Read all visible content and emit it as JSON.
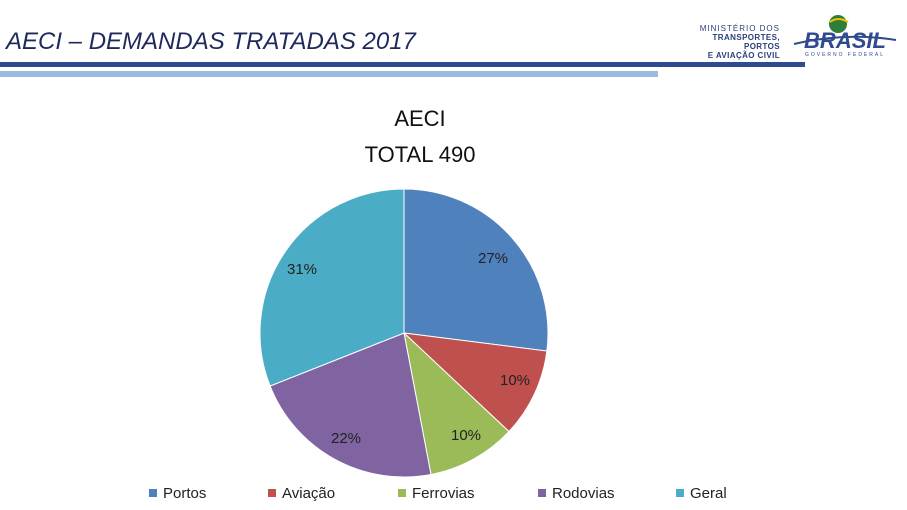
{
  "header": {
    "title": "AECI – DEMANDAS TRATADAS 2017",
    "ministry_lines": [
      "MINISTÉRIO DOS",
      "TRANSPORTES, PORTOS",
      "E AVIAÇÃO CIVIL"
    ],
    "brasil_logo_text": "BRASIL",
    "brasil_logo_subtext": "GOVERNO FEDERAL",
    "brand_color": "#2f4a8f",
    "accent_color": "#9bbbe0"
  },
  "chart_data": {
    "type": "pie",
    "title_line1": "AECI",
    "title_line2": "TOTAL 490",
    "start_angle_deg": 0,
    "direction": "clockwise",
    "legend_position": "bottom",
    "categories": [
      "Portos",
      "Aviação",
      "Ferrovias",
      "Rodovias",
      "Geral"
    ],
    "values": [
      27,
      10,
      10,
      22,
      31
    ],
    "labels": [
      "27%",
      "10%",
      "10%",
      "22%",
      "31%"
    ],
    "colors": [
      "#4f81bd",
      "#c0504d",
      "#9bbb59",
      "#8064a2",
      "#4bacc6"
    ]
  }
}
